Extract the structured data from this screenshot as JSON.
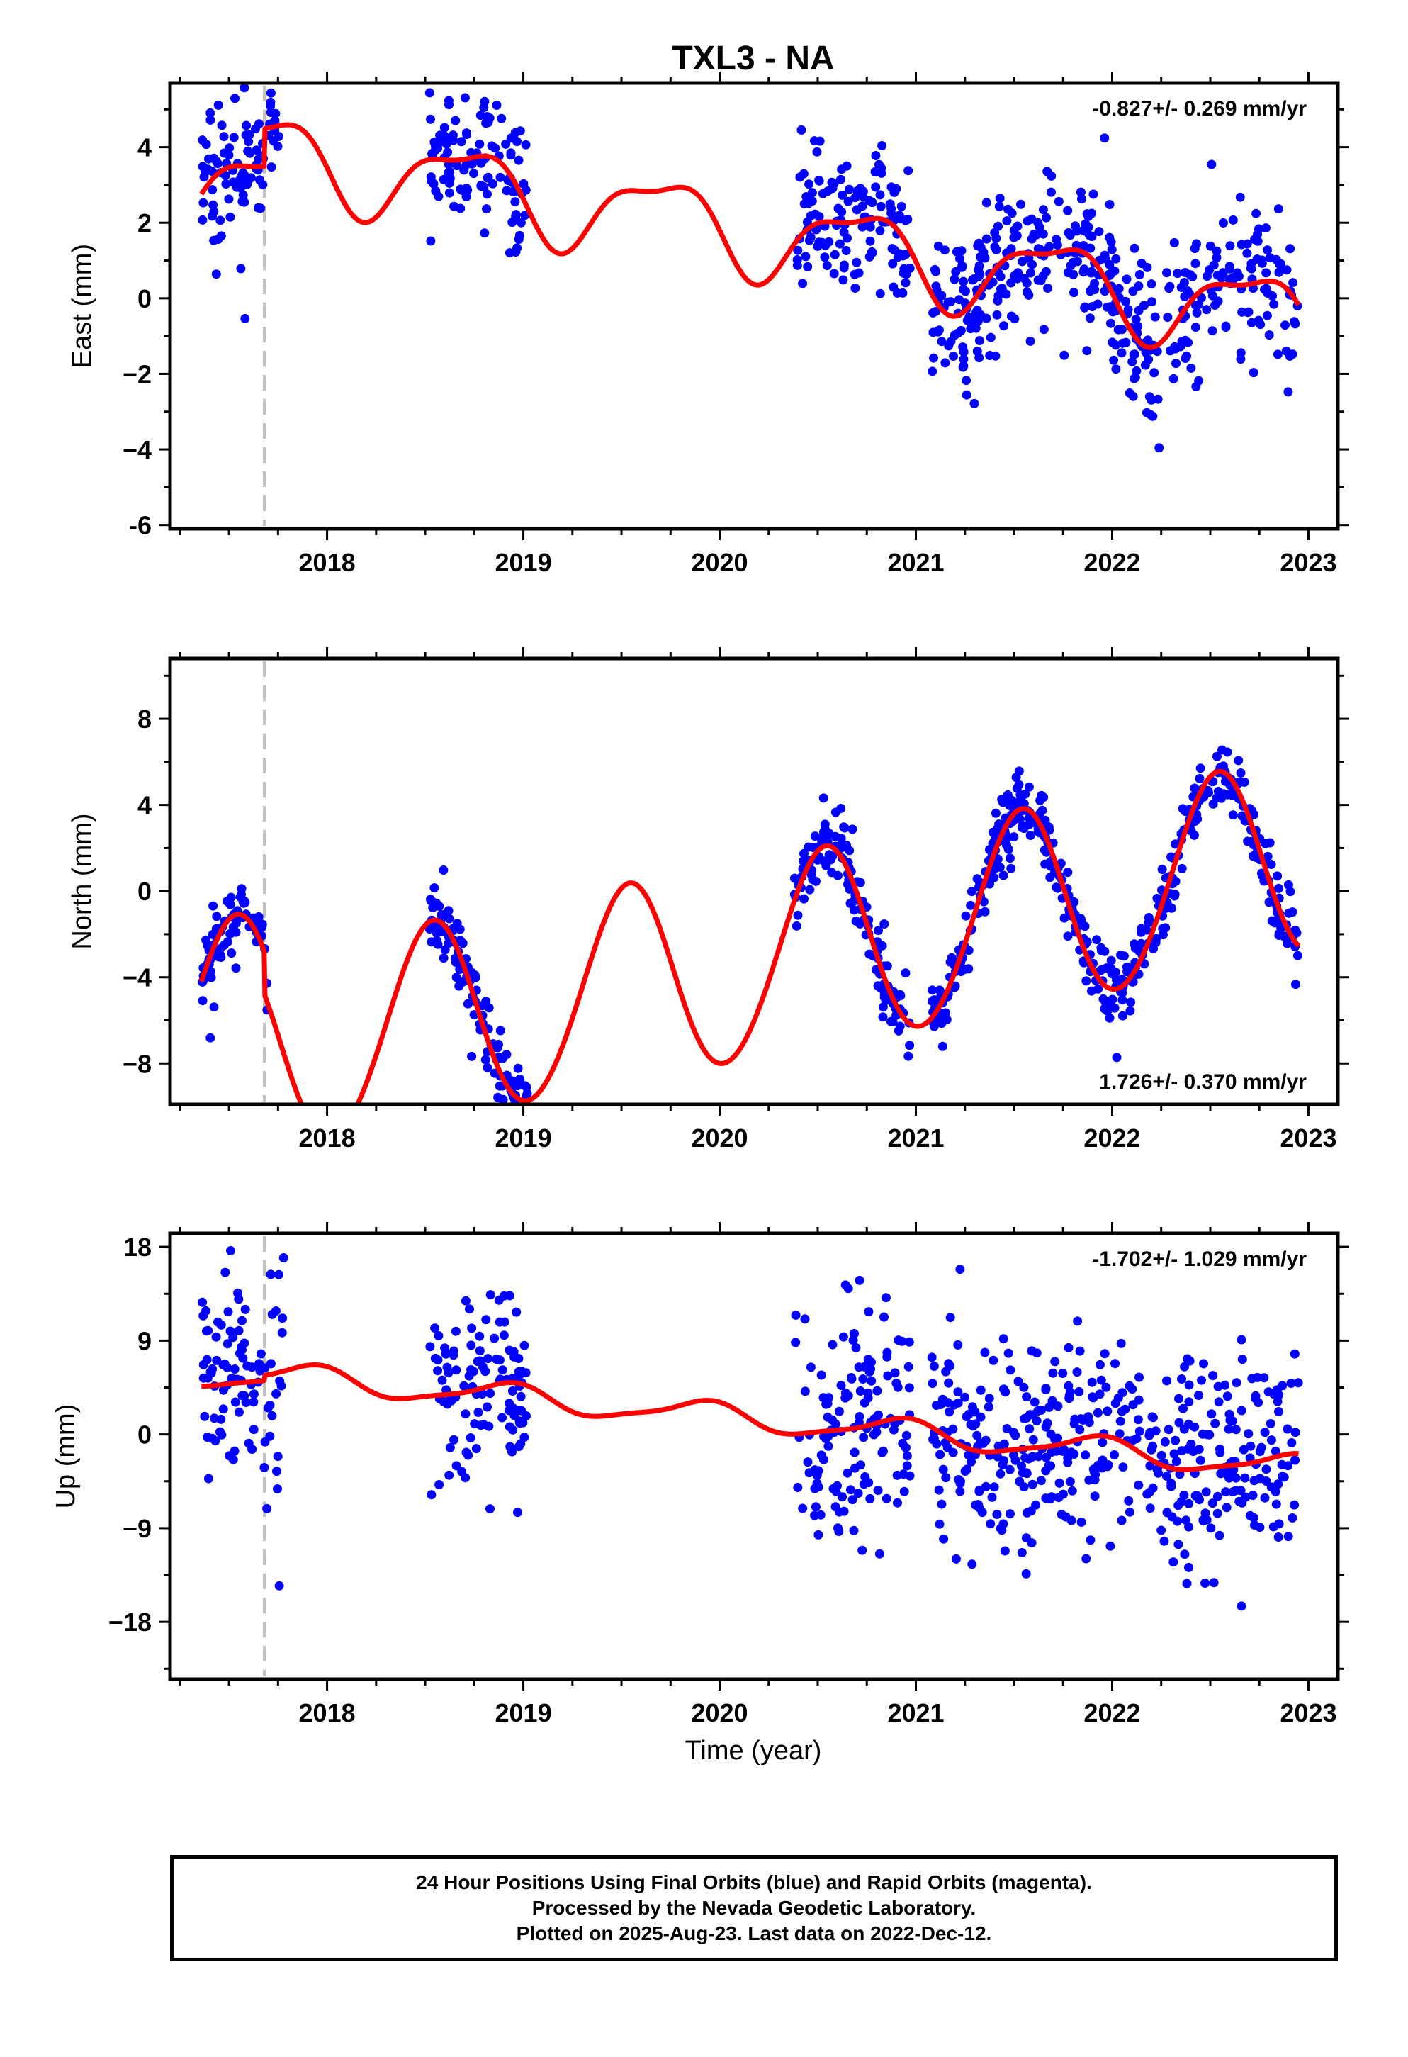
{
  "title": "TXL3 - NA",
  "xlabel": "Time (year)",
  "footer": {
    "line1": "24 Hour Positions Using Final Orbits (blue) and Rapid Orbits (magenta).",
    "line2": "Processed by the Nevada Geodetic Laboratory.",
    "line3": "Plotted on 2025-Aug-23. Last data on 2022-Dec-12."
  },
  "colors": {
    "data": "#0000ff",
    "model": "#ff0000",
    "event_line": "#bfbfbf"
  },
  "chart_data": [
    {
      "type": "scatter",
      "ylabel": "East (mm)",
      "rate_label": "-0.827+/- 0.269 mm/yr",
      "rate_position": "top-right",
      "xlim": [
        2017.2,
        2023.15
      ],
      "ylim": [
        -6.1,
        5.7
      ],
      "yticks": [
        -6,
        -4,
        -2,
        0,
        2,
        4
      ],
      "ytick_labels": [
        "-6",
        "−4",
        "−2",
        "0",
        "2",
        "4"
      ],
      "xticks": [
        2018,
        2019,
        2020,
        2021,
        2022,
        2023
      ],
      "xtick_labels": [
        "2018",
        "2019",
        "2020",
        "2021",
        "2022",
        "2023"
      ],
      "event_line_x": 2017.68,
      "data_segments": [
        [
          2017.36,
          2017.7
        ],
        [
          2017.7,
          2017.78
        ],
        [
          2018.52,
          2019.02
        ],
        [
          2020.38,
          2020.97
        ],
        [
          2021.08,
          2022.95
        ]
      ],
      "model": {
        "t0": 2020.0,
        "offset": 0.9,
        "trend": -0.827,
        "annual_sin": -1.0,
        "annual_cos": -0.3,
        "semiannual_sin": -0.3,
        "semiannual_cos": 0.2,
        "steps": [
          {
            "x": 2017.68,
            "size": 1.0
          }
        ]
      },
      "noise": 1.0,
      "outlier_seed": 11
    },
    {
      "type": "scatter",
      "ylabel": "North (mm)",
      "rate_label": "1.726+/- 0.370 mm/yr",
      "rate_position": "bottom-right",
      "xlim": [
        2017.2,
        2023.15
      ],
      "ylim": [
        -9.9,
        10.8
      ],
      "yticks": [
        -8,
        -4,
        0,
        4,
        8
      ],
      "ytick_labels": [
        "−8",
        "−4",
        "0",
        "4",
        "8"
      ],
      "xticks": [
        2018,
        2019,
        2020,
        2021,
        2022,
        2023
      ],
      "xtick_labels": [
        "2018",
        "2019",
        "2020",
        "2021",
        "2022",
        "2023"
      ],
      "event_line_x": 2017.68,
      "data_segments": [
        [
          2017.36,
          2017.7
        ],
        [
          2018.52,
          2019.02
        ],
        [
          2020.38,
          2020.97
        ],
        [
          2021.08,
          2022.95
        ]
      ],
      "model": {
        "t0": 2020.0,
        "offset": -1.6,
        "trend": 1.726,
        "annual_sin": -0.9,
        "annual_cos": -4.5,
        "semiannual_sin": 0.2,
        "semiannual_cos": 0.1,
        "steps": [
          {
            "x": 2017.68,
            "size": -2.0
          }
        ]
      },
      "noise": 0.8,
      "outlier_seed": 23
    },
    {
      "type": "scatter",
      "ylabel": "Up (mm)",
      "rate_label": "-1.702+/- 1.029 mm/yr",
      "rate_position": "top-right",
      "xlim": [
        2017.2,
        2023.15
      ],
      "ylim": [
        -23.5,
        19.3
      ],
      "yticks": [
        -18,
        -9,
        0,
        9,
        18
      ],
      "ytick_labels": [
        "−18",
        "−9",
        "0",
        "9",
        "18"
      ],
      "xticks": [
        2018,
        2019,
        2020,
        2021,
        2022,
        2023
      ],
      "xtick_labels": [
        "2018",
        "2019",
        "2020",
        "2021",
        "2022",
        "2023"
      ],
      "event_line_x": 2017.68,
      "data_segments": [
        [
          2017.36,
          2017.7
        ],
        [
          2017.7,
          2017.78
        ],
        [
          2018.52,
          2019.02
        ],
        [
          2020.38,
          2020.97
        ],
        [
          2021.08,
          2022.95
        ]
      ],
      "model": {
        "t0": 2020.0,
        "offset": 1.3,
        "trend": -1.702,
        "annual_sin": -0.6,
        "annual_cos": 1.0,
        "semiannual_sin": 0.0,
        "semiannual_cos": 0.3,
        "steps": [
          {
            "x": 2017.68,
            "size": 0.5
          }
        ]
      },
      "noise": 5.0,
      "outlier_seed": 37
    }
  ]
}
